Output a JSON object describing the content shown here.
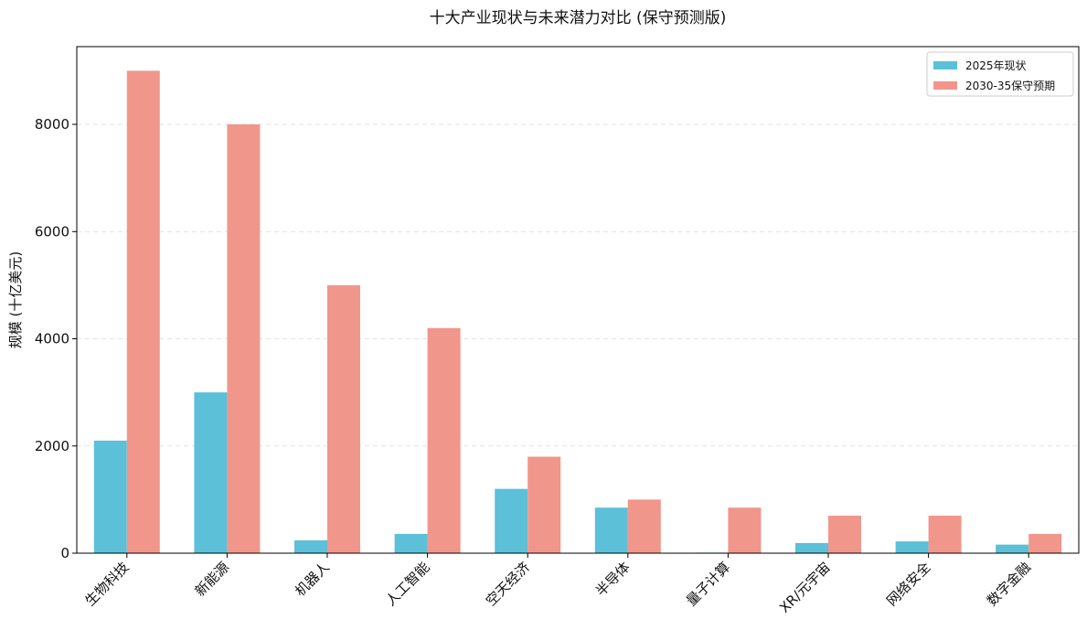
{
  "chart_data": {
    "type": "bar",
    "title": "十大产业现状与未来潜力对比 (保守预测版)",
    "xlabel": "",
    "ylabel": "规模 (十亿美元)",
    "categories": [
      "生物科技",
      "新能源",
      "机器人",
      "人工智能",
      "空天经济",
      "半导体",
      "量子计算",
      "XR/元宇宙",
      "网络安全",
      "数字金融"
    ],
    "series": [
      {
        "name": "2025年现状",
        "color": "#5bc0d8",
        "values": [
          2100,
          3000,
          240,
          360,
          1200,
          850,
          10,
          190,
          220,
          160
        ]
      },
      {
        "name": "2030-35保守预期",
        "color": "#f1968b",
        "values": [
          9000,
          8000,
          5000,
          4200,
          1800,
          1000,
          850,
          700,
          700,
          360
        ]
      }
    ],
    "ylim": [
      0,
      9450
    ],
    "yticks": [
      0,
      2000,
      4000,
      6000,
      8000
    ],
    "grid": "y-dashed",
    "legend": "top-right"
  }
}
